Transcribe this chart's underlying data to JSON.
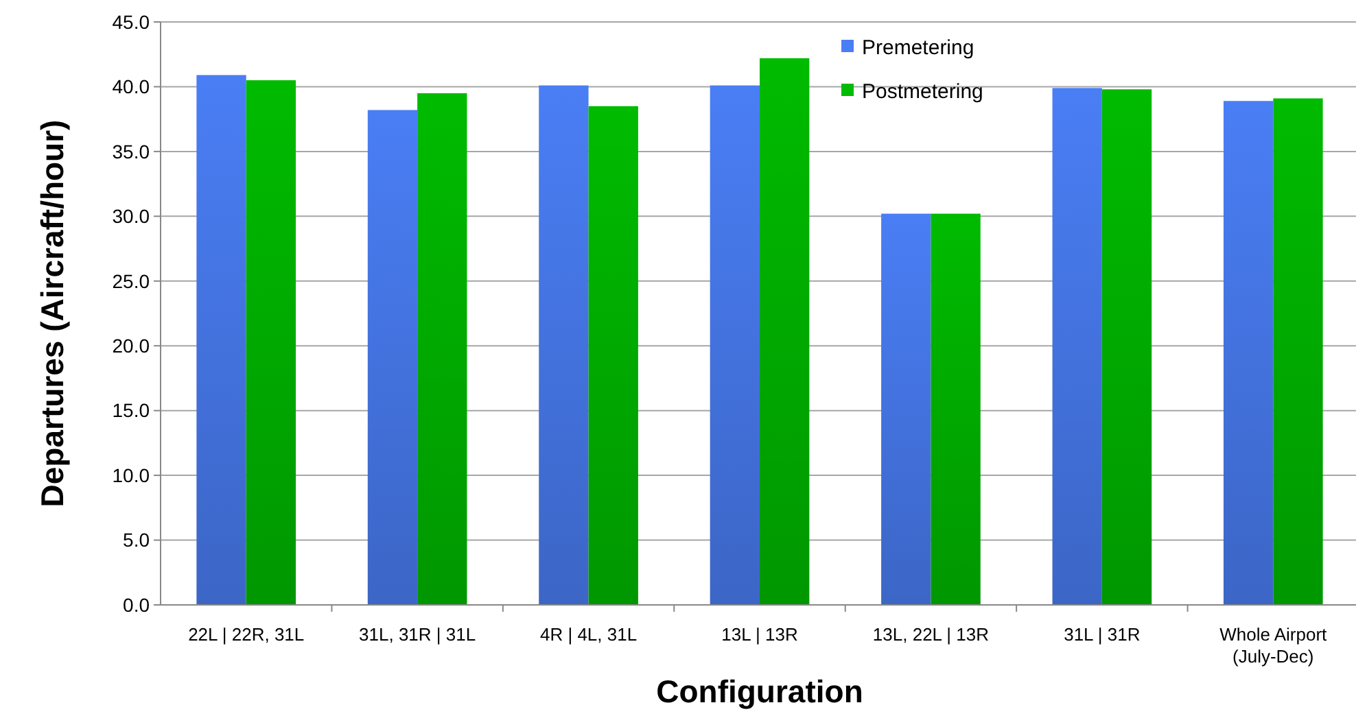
{
  "chart_data": {
    "type": "bar",
    "xlabel": "Configuration",
    "ylabel": "Departures (Aircraft/hour)",
    "categories": [
      "22L | 22R, 31L",
      "31L, 31R | 31L",
      "4R | 4L, 31L",
      "13L | 13R",
      "13L, 22L | 13R",
      "31L | 31R",
      "Whole Airport (July-Dec)"
    ],
    "series": [
      {
        "name": "Premetering",
        "color": "#4a7ef5",
        "values": [
          40.9,
          38.2,
          40.1,
          40.1,
          30.2,
          39.9,
          38.9
        ]
      },
      {
        "name": "Postmetering",
        "color": "#00bb00",
        "values": [
          40.5,
          39.5,
          38.5,
          42.2,
          30.2,
          39.8,
          39.1
        ]
      }
    ],
    "ylim": [
      0,
      45
    ],
    "yticks": [
      {
        "value": 0,
        "label": "0.0"
      },
      {
        "value": 5,
        "label": "5.0"
      },
      {
        "value": 10,
        "label": "10.0"
      },
      {
        "value": 15,
        "label": "15.0"
      },
      {
        "value": 20,
        "label": "20.0"
      },
      {
        "value": 25,
        "label": "25.0"
      },
      {
        "value": 30,
        "label": "30.0"
      },
      {
        "value": 35,
        "label": "35.0"
      },
      {
        "value": 40,
        "label": "40.0"
      },
      {
        "value": 45,
        "label": "45.0"
      }
    ],
    "grid": "y",
    "legend": "top right"
  }
}
